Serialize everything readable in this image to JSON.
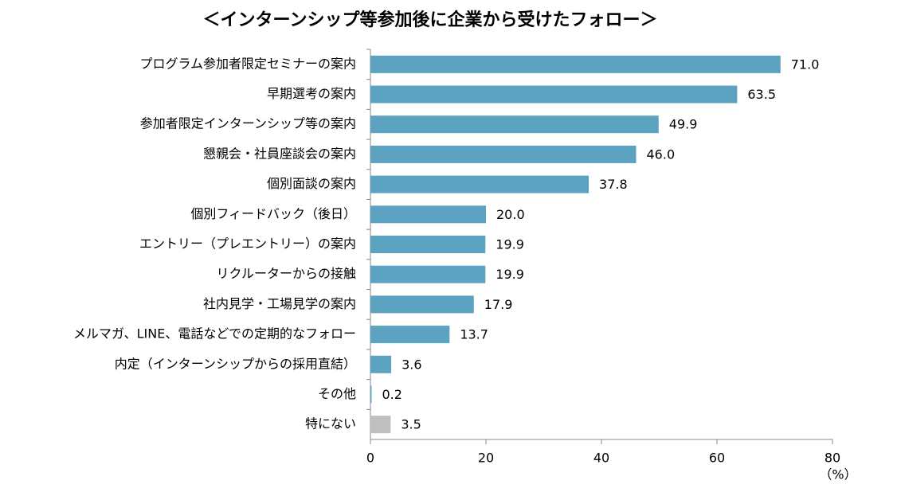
{
  "chart_data": {
    "type": "hbar",
    "title": "＜インターンシップ等参加後に企業から受けたフォロー＞",
    "categories": [
      "プログラム参加者限定セミナーの案内",
      "早期選考の案内",
      "参加者限定インターンシップ等の案内",
      "懇親会・社員座談会の案内",
      "個別面談の案内",
      "個別フィードバック（後日）",
      "エントリー（プレエントリー）の案内",
      "リクルーターからの接触",
      "社内見学・工場見学の案内",
      "メルマガ、LINE、電話などでの定期的なフォロー",
      "内定（インターンシップからの採用直結）",
      "その他",
      "特にない"
    ],
    "values": [
      71.0,
      63.5,
      49.9,
      46.0,
      37.8,
      20.0,
      19.9,
      19.9,
      17.9,
      13.7,
      3.6,
      0.2,
      3.5
    ],
    "value_labels": [
      "71.0",
      "63.5",
      "49.9",
      "46.0",
      "37.8",
      "20.0",
      "19.9",
      "19.9",
      "17.9",
      "13.7",
      "3.6",
      "0.2",
      "3.5"
    ],
    "colors": [
      "#5ba3c0",
      "#5ba3c0",
      "#5ba3c0",
      "#5ba3c0",
      "#5ba3c0",
      "#5ba3c0",
      "#5ba3c0",
      "#5ba3c0",
      "#5ba3c0",
      "#5ba3c0",
      "#5ba3c0",
      "#5ba3c0",
      "#bfbfbf"
    ],
    "xlim": [
      0,
      80
    ],
    "xticks": [
      0,
      20,
      40,
      60,
      80
    ],
    "xlabel": "（%）"
  }
}
